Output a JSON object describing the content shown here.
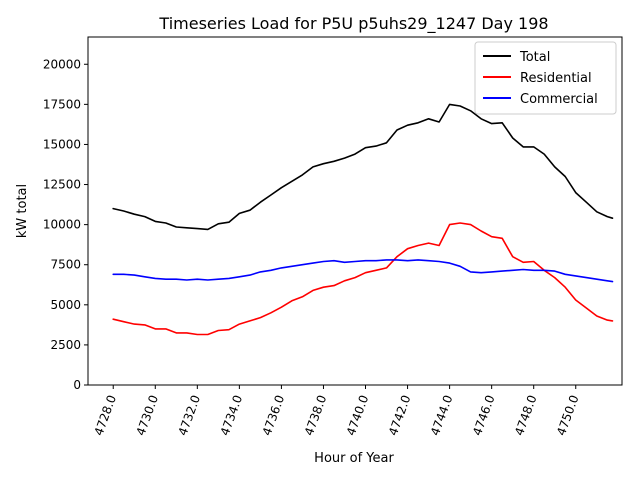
{
  "chart_data": {
    "type": "line",
    "title": "Timeseries Load for P5U p5uhs29_1247  Day 198",
    "xlabel": "Hour of Year",
    "ylabel": "kW total",
    "xlim": [
      4726.8,
      4752.2
    ],
    "ylim": [
      0,
      21700
    ],
    "x_ticks": [
      4728,
      4730,
      4732,
      4734,
      4736,
      4738,
      4740,
      4742,
      4744,
      4746,
      4748,
      4750
    ],
    "x_tick_labels": [
      "4728.0",
      "4730.0",
      "4732.0",
      "4734.0",
      "4736.0",
      "4738.0",
      "4740.0",
      "4742.0",
      "4744.0",
      "4746.0",
      "4748.0",
      "4750.0"
    ],
    "y_ticks": [
      0,
      2500,
      5000,
      7500,
      10000,
      12500,
      15000,
      17500,
      20000
    ],
    "y_tick_labels": [
      "0",
      "2500",
      "5000",
      "7500",
      "10000",
      "12500",
      "15000",
      "17500",
      "20000"
    ],
    "legend_position": "top-right",
    "x": [
      4728.0,
      4728.5,
      4729.0,
      4729.5,
      4730.0,
      4730.5,
      4731.0,
      4731.5,
      4732.0,
      4732.5,
      4733.0,
      4733.5,
      4734.0,
      4734.5,
      4735.0,
      4735.5,
      4736.0,
      4736.5,
      4737.0,
      4737.5,
      4738.0,
      4738.5,
      4739.0,
      4739.5,
      4740.0,
      4740.5,
      4741.0,
      4741.5,
      4742.0,
      4742.5,
      4743.0,
      4743.5,
      4744.0,
      4744.5,
      4745.0,
      4745.5,
      4746.0,
      4746.5,
      4747.0,
      4747.5,
      4748.0,
      4748.5,
      4749.0,
      4749.5,
      4750.0,
      4750.5,
      4751.0,
      4751.5,
      4751.75
    ],
    "series": [
      {
        "name": "Total",
        "color": "#000000",
        "values": [
          11000,
          10850,
          10650,
          10500,
          10200,
          10100,
          9850,
          9800,
          9750,
          9700,
          10050,
          10150,
          10700,
          10900,
          11400,
          11850,
          12300,
          12700,
          13100,
          13600,
          13800,
          13950,
          14150,
          14400,
          14800,
          14900,
          15100,
          15900,
          16200,
          16350,
          16600,
          16400,
          17500,
          17400,
          17100,
          16600,
          16300,
          16350,
          15400,
          14850,
          14850,
          14400,
          13600,
          13000,
          12000,
          11400,
          10800,
          10500,
          10400
        ]
      },
      {
        "name": "Residential",
        "color": "#ff0000",
        "values": [
          4100,
          3950,
          3800,
          3750,
          3500,
          3500,
          3250,
          3250,
          3150,
          3150,
          3400,
          3450,
          3800,
          4000,
          4200,
          4500,
          4850,
          5250,
          5500,
          5900,
          6100,
          6200,
          6500,
          6700,
          7000,
          7150,
          7300,
          8000,
          8500,
          8700,
          8850,
          8700,
          10000,
          10100,
          10000,
          9600,
          9250,
          9150,
          8000,
          7650,
          7700,
          7150,
          6700,
          6100,
          5300,
          4800,
          4300,
          4050,
          4000
        ]
      },
      {
        "name": "Commercial",
        "color": "#0000ff",
        "values": [
          6900,
          6900,
          6850,
          6750,
          6650,
          6600,
          6600,
          6550,
          6600,
          6550,
          6600,
          6650,
          6750,
          6850,
          7050,
          7150,
          7300,
          7400,
          7500,
          7600,
          7700,
          7750,
          7650,
          7700,
          7750,
          7750,
          7800,
          7800,
          7750,
          7800,
          7750,
          7700,
          7600,
          7400,
          7050,
          7000,
          7050,
          7100,
          7150,
          7200,
          7150,
          7150,
          7100,
          6900,
          6800,
          6700,
          6600,
          6500,
          6450
        ]
      }
    ]
  }
}
